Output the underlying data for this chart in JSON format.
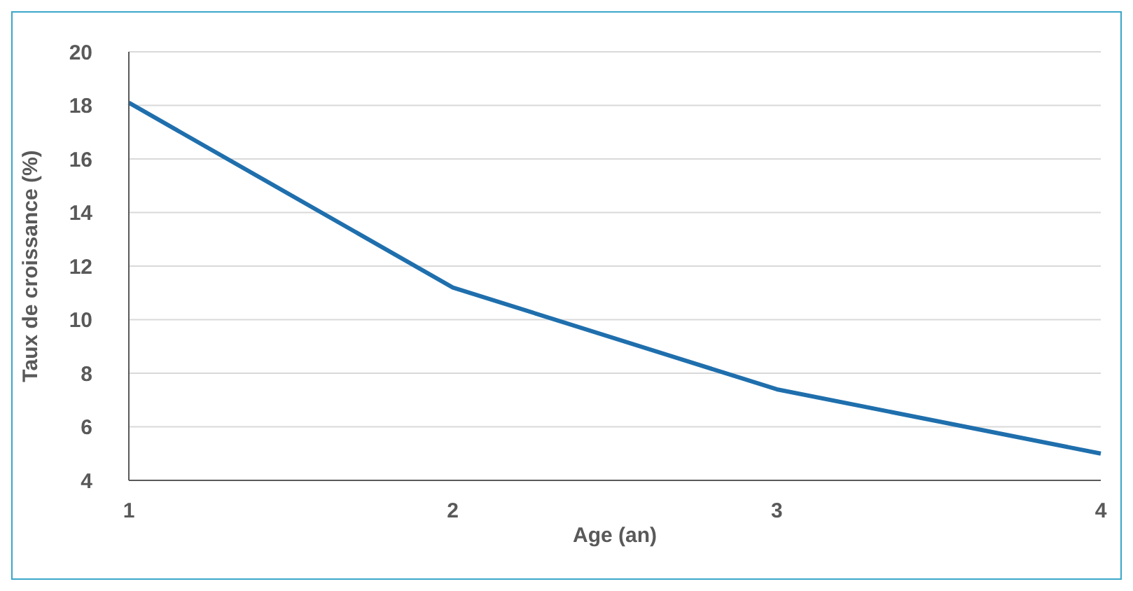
{
  "chart_data": {
    "type": "line",
    "xlabel": "Age (an)",
    "ylabel": "Taux  de croissance (%)",
    "categories": [
      "1",
      "2",
      "3",
      "4"
    ],
    "series": [
      {
        "color": "#1f6fad",
        "values": [
          18.1,
          11.2,
          7.4,
          5.0
        ]
      }
    ],
    "ylim": [
      4,
      20
    ],
    "yticks": [
      4,
      6,
      8,
      10,
      12,
      14,
      16,
      18,
      20
    ],
    "grid": "y",
    "legend": false,
    "marker": "none",
    "line_style": "solid"
  }
}
